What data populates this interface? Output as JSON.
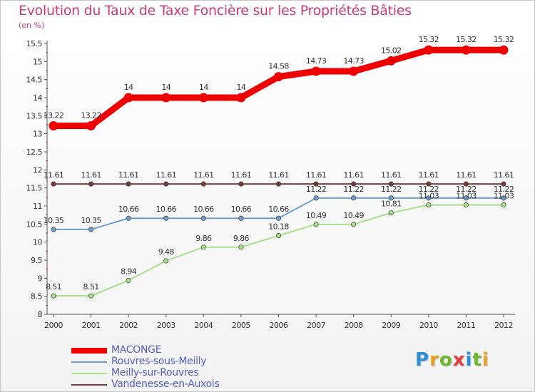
{
  "chart_data": {
    "type": "line",
    "title": "Evolution du Taux de Taxe Foncière sur les Propriétés Bâties",
    "ylabel": "(en %)",
    "xlabel": "",
    "x": [
      "2000",
      "2001",
      "2002",
      "2003",
      "2004",
      "2005",
      "2006",
      "2007",
      "2008",
      "2009",
      "2010",
      "2011",
      "2012"
    ],
    "ylim": [
      8,
      15.5
    ],
    "yticks": [
      "8",
      "8.5",
      "9",
      "9.5",
      "10",
      "10.5",
      "11",
      "11.5",
      "12",
      "12.5",
      "13",
      "13.5",
      "14",
      "14.5",
      "15",
      "15.5"
    ],
    "grid": false,
    "legend_position": "bottom-left",
    "series": [
      {
        "name": "MACONGE",
        "color": "#ee0000",
        "values": [
          13.22,
          13.22,
          14,
          14,
          14,
          14,
          14.58,
          14.73,
          14.73,
          15.02,
          15.32,
          15.32,
          15.32
        ],
        "labels": [
          "13.22",
          "13.22",
          "14",
          "14",
          "14",
          "14",
          "14.58",
          "14.73",
          "14.73",
          "15.02",
          "15.32",
          "15.32",
          "15.32"
        ]
      },
      {
        "name": "Rouvres-sous-Meilly",
        "color": "#6e9ed2",
        "values": [
          10.35,
          10.35,
          10.66,
          10.66,
          10.66,
          10.66,
          10.66,
          11.22,
          11.22,
          11.22,
          11.22,
          11.22,
          11.22
        ],
        "labels": [
          "10.35",
          "10.35",
          "10.66",
          "10.66",
          "10.66",
          "10.66",
          "10.66",
          "11.22",
          "11.22",
          "11.22",
          "11.22",
          "11.22",
          "11.22"
        ]
      },
      {
        "name": "Meilly-sur-Rouvres",
        "color": "#a8e08c",
        "values": [
          8.51,
          8.51,
          8.94,
          9.48,
          9.86,
          9.86,
          10.18,
          10.49,
          10.49,
          10.81,
          11.03,
          11.03,
          11.03
        ],
        "labels": [
          "8.51",
          "8.51",
          "8.94",
          "9.48",
          "9.86",
          "9.86",
          "10.18",
          "10.49",
          "10.49",
          "10.81",
          "11.03",
          "11.03",
          "11.03"
        ]
      },
      {
        "name": "Vandenesse-en-Auxois",
        "color": "#7a3a3a",
        "values": [
          11.61,
          11.61,
          11.61,
          11.61,
          11.61,
          11.61,
          11.61,
          11.61,
          11.61,
          11.61,
          11.61,
          11.61,
          11.61
        ],
        "labels": [
          "11.61",
          "11.61",
          "11.61",
          "11.61",
          "11.61",
          "11.61",
          "11.61",
          "11.61",
          "11.61",
          "11.61",
          "11.61",
          "11.61",
          "11.61"
        ]
      }
    ]
  },
  "logo": {
    "text": "Proxiti",
    "letters": [
      {
        "ch": "P",
        "color": "#2a8fd6"
      },
      {
        "ch": "r",
        "color": "#e8a020"
      },
      {
        "ch": "o",
        "color": "#6cb82c"
      },
      {
        "ch": "x",
        "color": "#e83c3c"
      },
      {
        "ch": "i",
        "color": "#2a8fd6"
      },
      {
        "ch": "t",
        "color": "#6cb82c"
      },
      {
        "ch": "i",
        "color": "#e8a020"
      }
    ]
  }
}
